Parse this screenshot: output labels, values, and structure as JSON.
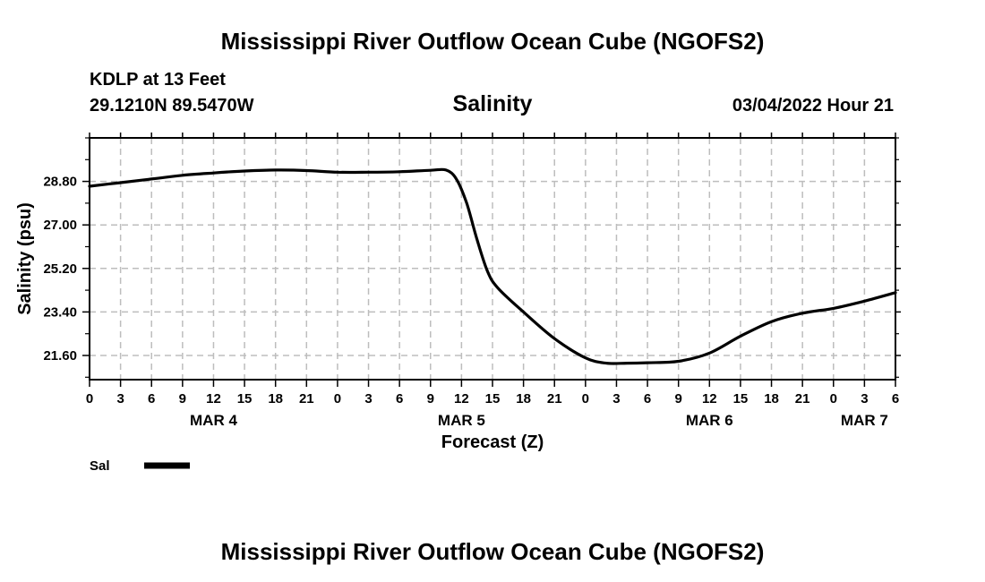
{
  "header": {
    "title": "Mississippi River Outflow Ocean Cube (NGOFS2)",
    "station": "KDLP at 13 Feet",
    "coords": "29.1210N  89.5470W",
    "variable": "Salinity",
    "datetime": "03/04/2022 Hour 21"
  },
  "footer": {
    "title": "Mississippi River Outflow Ocean Cube (NGOFS2)"
  },
  "legend": {
    "label": "Sal",
    "color": "#000000"
  },
  "chart_data": {
    "type": "line",
    "title": "Salinity",
    "xlabel": "Forecast (Z)",
    "ylabel": "Salinity (psu)",
    "xlim": [
      0,
      78
    ],
    "ylim": [
      20.6,
      30.6
    ],
    "x_ticks": [
      0,
      3,
      6,
      9,
      12,
      15,
      18,
      21,
      24,
      27,
      30,
      33,
      36,
      39,
      42,
      45,
      48,
      51,
      54,
      57,
      60,
      63,
      66,
      69,
      72,
      75,
      78
    ],
    "x_tick_labels": [
      "0",
      "3",
      "6",
      "9",
      "12",
      "15",
      "18",
      "21",
      "0",
      "3",
      "6",
      "9",
      "12",
      "15",
      "18",
      "21",
      "0",
      "3",
      "6",
      "9",
      "12",
      "15",
      "18",
      "21",
      "0",
      "3",
      "6"
    ],
    "y_ticks": [
      21.6,
      23.4,
      25.2,
      27.0,
      28.8
    ],
    "y_tick_labels": [
      "21.60",
      "23.40",
      "25.20",
      "27.00",
      "28.80"
    ],
    "y_minor_ticks": [
      20.7,
      22.5,
      24.3,
      26.1,
      27.9,
      29.7,
      30.6
    ],
    "day_labels": [
      {
        "x": 12,
        "label": "MAR 4"
      },
      {
        "x": 36,
        "label": "MAR 5"
      },
      {
        "x": 60,
        "label": "MAR 6"
      },
      {
        "x": 75,
        "label": "MAR 7"
      }
    ],
    "grid": true,
    "series": [
      {
        "name": "Sal",
        "color": "#000000",
        "x": [
          0,
          3,
          6,
          9,
          12,
          15,
          18,
          21,
          24,
          27,
          30,
          33,
          34.5,
          35.5,
          36.5,
          37.5,
          38.5,
          39.5,
          42,
          45,
          48,
          50,
          52,
          54,
          57,
          60,
          63,
          66,
          69,
          72,
          75,
          78
        ],
        "values": [
          28.6,
          28.75,
          28.9,
          29.05,
          29.15,
          29.23,
          29.27,
          29.25,
          29.18,
          29.18,
          29.2,
          29.26,
          29.27,
          28.9,
          27.9,
          26.4,
          25.1,
          24.4,
          23.4,
          22.3,
          21.5,
          21.28,
          21.28,
          21.3,
          21.36,
          21.7,
          22.4,
          23.0,
          23.35,
          23.55,
          23.85,
          24.2
        ]
      }
    ]
  }
}
